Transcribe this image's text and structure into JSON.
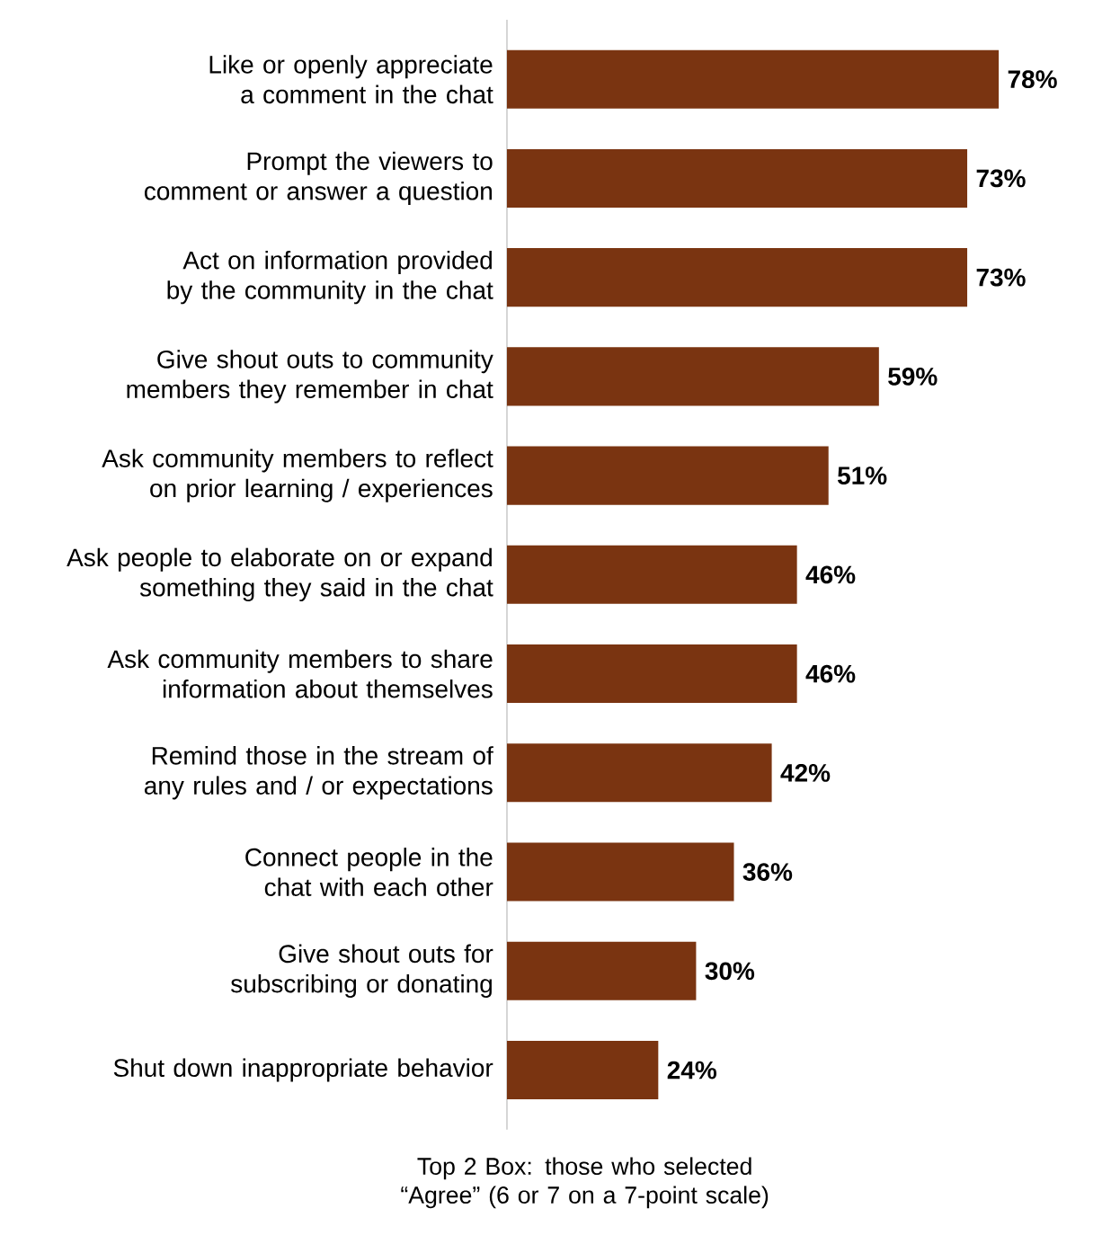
{
  "chart_data": {
    "type": "bar",
    "orientation": "horizontal",
    "color": "#7a3411",
    "categories": [
      "Like or openly appreciate a comment in the chat",
      "Prompt the viewers to comment or answer a question",
      "Act on information provided by the community in the chat",
      "Give shout outs to community members they remember in chat",
      "Ask community members to reflect on prior learning / experiences",
      "Ask people to elaborate on or expand something they said in the chat",
      "Ask community members to share information about themselves",
      "Remind those in the stream of any rules and / or expectations",
      "Connect people in the chat with each other",
      "Give shout outs for subscribing or donating",
      "Shut down inappropriate behavior"
    ],
    "values": [
      78,
      73,
      73,
      59,
      51,
      46,
      46,
      42,
      36,
      30,
      24
    ],
    "value_labels": [
      "78%",
      "73%",
      "73%",
      "59%",
      "51%",
      "46%",
      "46%",
      "42%",
      "36%",
      "30%",
      "24%"
    ],
    "annotations": [
      "Top 2 Box: those who selected “Agree” (6 or 7 on a 7-point scale)"
    ]
  }
}
